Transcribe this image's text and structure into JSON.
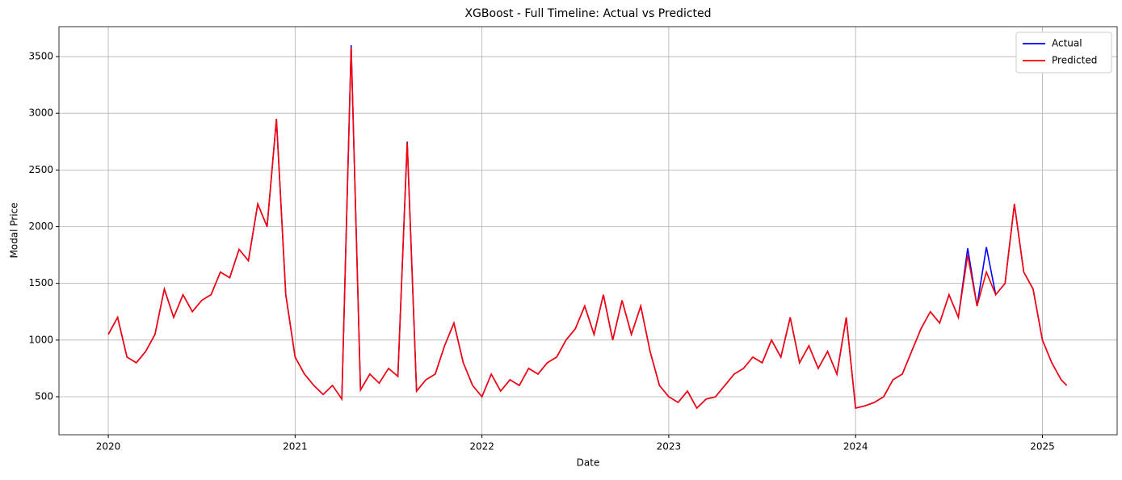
{
  "chart_data": {
    "type": "line",
    "title": "XGBoost - Full Timeline: Actual vs Predicted",
    "x_label": "Date",
    "y_label": "Modal Price",
    "x": [
      2020.0,
      2020.05,
      2020.1,
      2020.15,
      2020.2,
      2020.25,
      2020.3,
      2020.35,
      2020.4,
      2020.45,
      2020.5,
      2020.55,
      2020.6,
      2020.65,
      2020.7,
      2020.75,
      2020.8,
      2020.85,
      2020.9,
      2020.95,
      2021.0,
      2021.05,
      2021.1,
      2021.15,
      2021.2,
      2021.25,
      2021.3,
      2021.35,
      2021.4,
      2021.45,
      2021.5,
      2021.55,
      2021.6,
      2021.65,
      2021.7,
      2021.75,
      2021.8,
      2021.85,
      2021.9,
      2021.95,
      2022.0,
      2022.05,
      2022.1,
      2022.15,
      2022.2,
      2022.25,
      2022.3,
      2022.35,
      2022.4,
      2022.45,
      2022.5,
      2022.55,
      2022.6,
      2022.65,
      2022.7,
      2022.75,
      2022.8,
      2022.85,
      2022.9,
      2022.95,
      2023.0,
      2023.05,
      2023.1,
      2023.15,
      2023.2,
      2023.25,
      2023.3,
      2023.35,
      2023.4,
      2023.45,
      2023.5,
      2023.55,
      2023.6,
      2023.65,
      2023.7,
      2023.75,
      2023.8,
      2023.85,
      2023.9,
      2023.95,
      2024.0,
      2024.05,
      2024.1,
      2024.15,
      2024.2,
      2024.25,
      2024.3,
      2024.35,
      2024.4,
      2024.45,
      2024.5,
      2024.55,
      2024.6,
      2024.65,
      2024.7,
      2024.75,
      2024.8,
      2024.85,
      2024.9,
      2024.95,
      2025.0,
      2025.05,
      2025.1,
      2025.13
    ],
    "series": [
      {
        "name": "Actual",
        "color": "#0000ff",
        "values": [
          1050,
          1200,
          850,
          800,
          900,
          1050,
          1450,
          1200,
          1400,
          1250,
          1350,
          1400,
          1600,
          1550,
          1800,
          1700,
          2200,
          2000,
          2950,
          1400,
          850,
          700,
          600,
          520,
          600,
          480,
          3600,
          560,
          700,
          620,
          750,
          680,
          2750,
          550,
          650,
          700,
          950,
          1150,
          800,
          600,
          500,
          700,
          550,
          650,
          600,
          750,
          700,
          800,
          850,
          1000,
          1100,
          1300,
          1050,
          1400,
          1000,
          1350,
          1050,
          1300,
          900,
          600,
          500,
          450,
          550,
          400,
          480,
          500,
          600,
          700,
          750,
          850,
          800,
          1000,
          850,
          1200,
          800,
          950,
          750,
          900,
          700,
          1200,
          400,
          420,
          450,
          500,
          650,
          700,
          900,
          1100,
          1250,
          1150,
          1400,
          1200,
          1810,
          1300,
          1820,
          1400,
          1500,
          2200,
          1600,
          1450,
          1000,
          800,
          650,
          600
        ]
      },
      {
        "name": "Predicted",
        "color": "#ff0000",
        "values": [
          1050,
          1200,
          850,
          800,
          900,
          1050,
          1450,
          1200,
          1400,
          1250,
          1350,
          1400,
          1600,
          1550,
          1800,
          1700,
          2200,
          2000,
          2950,
          1400,
          850,
          700,
          600,
          520,
          600,
          480,
          3580,
          560,
          700,
          620,
          750,
          680,
          2740,
          550,
          650,
          700,
          950,
          1150,
          800,
          600,
          500,
          700,
          550,
          650,
          600,
          750,
          700,
          800,
          850,
          1000,
          1100,
          1300,
          1050,
          1400,
          1000,
          1350,
          1050,
          1300,
          900,
          600,
          500,
          450,
          550,
          400,
          480,
          500,
          600,
          700,
          750,
          850,
          800,
          1000,
          850,
          1200,
          800,
          950,
          750,
          900,
          700,
          1200,
          400,
          420,
          450,
          500,
          650,
          700,
          900,
          1100,
          1250,
          1150,
          1400,
          1200,
          1750,
          1300,
          1600,
          1400,
          1500,
          2200,
          1600,
          1450,
          1000,
          800,
          650,
          600
        ]
      }
    ],
    "xlim": [
      2019.736,
      2025.4
    ],
    "xticks": [
      2020,
      2021,
      2022,
      2023,
      2024,
      2025
    ],
    "ylim": [
      165,
      3764
    ],
    "yticks": [
      500,
      1000,
      1500,
      2000,
      2500,
      3000,
      3500
    ],
    "grid": true,
    "legend": "upper right"
  }
}
